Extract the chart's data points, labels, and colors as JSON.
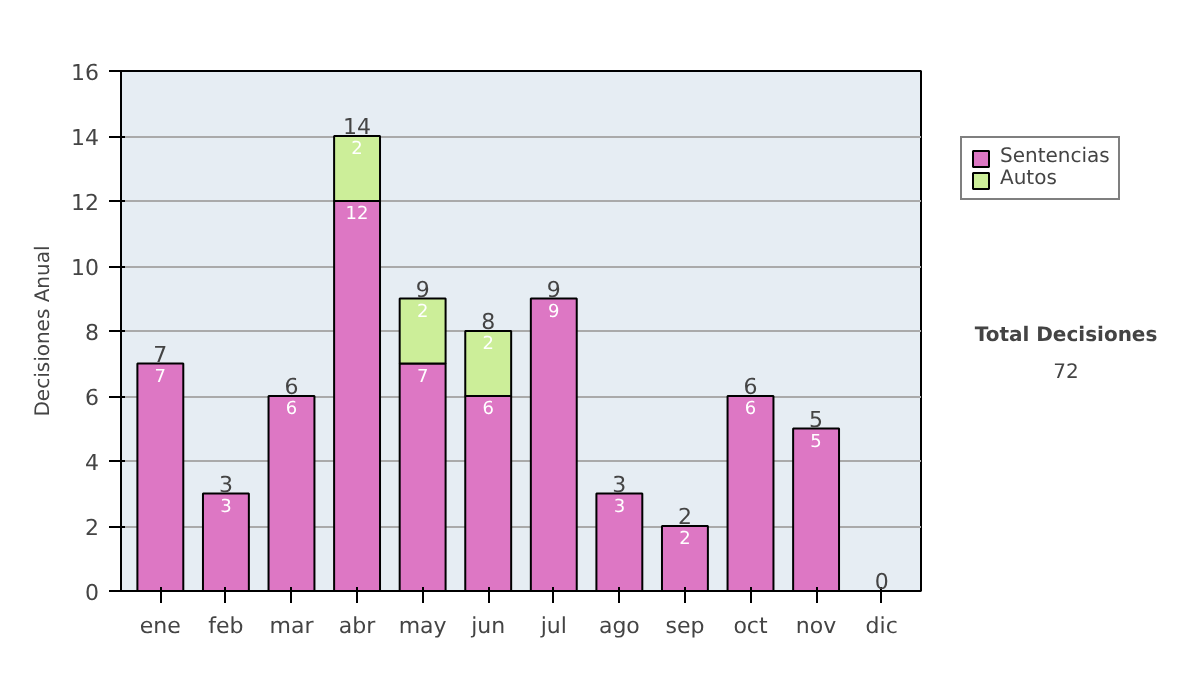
{
  "chart_data": {
    "type": "bar",
    "stacked": true,
    "ylabel": "Decisiones Anual",
    "categories": [
      "ene",
      "feb",
      "mar",
      "abr",
      "may",
      "jun",
      "jul",
      "ago",
      "sep",
      "oct",
      "nov",
      "dic"
    ],
    "series": [
      {
        "name": "Sentencias",
        "color": "#dd77c4",
        "values": [
          7,
          3,
          6,
          12,
          7,
          6,
          9,
          3,
          2,
          6,
          5,
          0
        ],
        "value_labels": [
          "7",
          "3",
          "6",
          "12",
          "7",
          "6",
          "9",
          "3",
          "2",
          "6",
          "5",
          null
        ]
      },
      {
        "name": "Autos",
        "color": "#ccee99",
        "values": [
          0,
          0,
          0,
          2,
          2,
          2,
          0,
          0,
          0,
          0,
          0,
          0
        ],
        "value_labels": [
          null,
          null,
          null,
          "2",
          "2",
          "2",
          null,
          null,
          null,
          null,
          null,
          null
        ]
      }
    ],
    "totals": [
      "7",
      "3",
      "6",
      "14",
      "9",
      "8",
      "9",
      "3",
      "2",
      "6",
      "5",
      "0"
    ],
    "ylim": [
      0,
      16
    ],
    "yticks": [
      0,
      2,
      4,
      6,
      8,
      10,
      12,
      14,
      16
    ],
    "grid": "y",
    "legend": "right",
    "annotations": [
      "Total Decisiones",
      "72"
    ]
  }
}
